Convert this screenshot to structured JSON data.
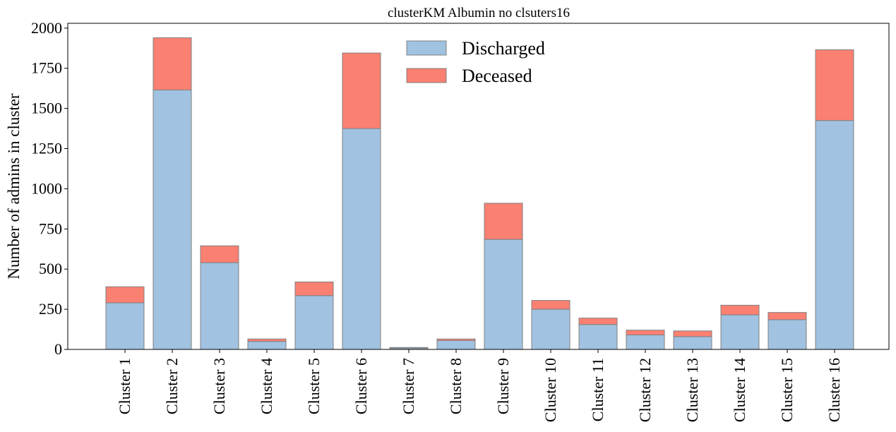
{
  "chart_data": {
    "type": "bar",
    "stacked": true,
    "title": "clusterKM Albumin no clsuters16",
    "xlabel": "",
    "ylabel": "Number of admins in cluster",
    "ylim": [
      0,
      2030
    ],
    "yticks": [
      0,
      250,
      500,
      750,
      1000,
      1250,
      1500,
      1750,
      2000
    ],
    "grid": false,
    "legend_position": "top-center",
    "categories": [
      "Cluster 1",
      "Cluster 2",
      "Cluster 3",
      "Cluster 4",
      "Cluster 5",
      "Cluster 6",
      "Cluster 7",
      "Cluster 8",
      "Cluster 9",
      "Cluster 10",
      "Cluster 11",
      "Cluster 12",
      "Cluster 13",
      "Cluster 14",
      "Cluster 15",
      "Cluster 16"
    ],
    "series": [
      {
        "name": "Discharged",
        "color": "#a1c2e0",
        "values": [
          290,
          1615,
          540,
          50,
          335,
          1375,
          8,
          55,
          685,
          250,
          155,
          90,
          80,
          215,
          185,
          1425
        ]
      },
      {
        "name": "Deceased",
        "color": "#fa8072",
        "values": [
          100,
          325,
          105,
          15,
          85,
          470,
          4,
          10,
          225,
          55,
          40,
          30,
          35,
          60,
          45,
          440
        ]
      }
    ],
    "edge_color": "#808080"
  }
}
